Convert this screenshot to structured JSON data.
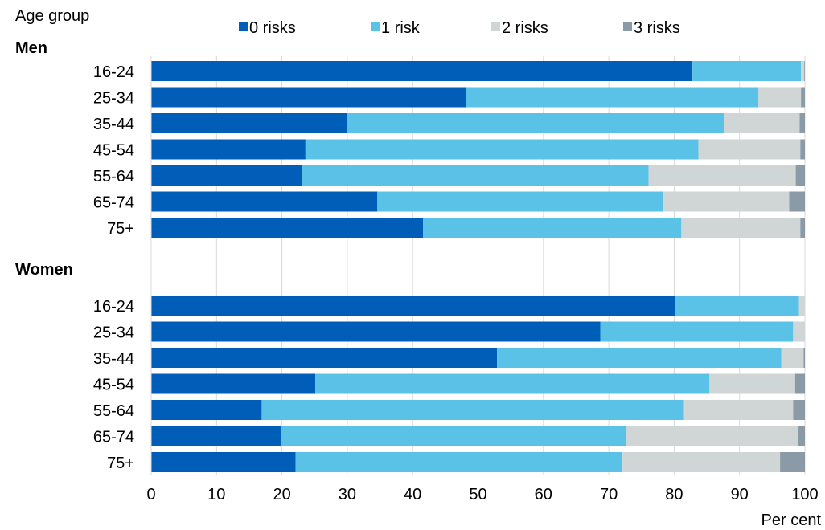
{
  "chart_data": {
    "type": "bar",
    "orientation": "horizontal",
    "stacked": true,
    "legend_title": "Age group",
    "xlabel": "Per cent",
    "xlim": [
      0,
      100
    ],
    "xticks": [
      0,
      10,
      20,
      30,
      40,
      50,
      60,
      70,
      80,
      90,
      100
    ],
    "grid": "vertical",
    "legend_position": "top",
    "series_meta": [
      {
        "name": "0 risks",
        "color": "#005EB8"
      },
      {
        "name": "1 risk",
        "color": "#5BC2E7"
      },
      {
        "name": "2 risks",
        "color": "#D0D5D6"
      },
      {
        "name": "3 risks",
        "color": "#8A9AA6"
      }
    ],
    "groups": [
      {
        "name": "Men",
        "categories": [
          "16-24",
          "25-34",
          "35-44",
          "45-54",
          "55-64",
          "65-74",
          "75+"
        ],
        "values": [
          [
            82.8,
            16.6,
            0.5,
            0.1
          ],
          [
            48.1,
            44.8,
            6.5,
            0.6
          ],
          [
            30.0,
            57.7,
            11.5,
            0.8
          ],
          [
            23.6,
            60.1,
            15.6,
            0.7
          ],
          [
            23.1,
            53.0,
            22.5,
            1.4
          ],
          [
            34.6,
            43.7,
            19.3,
            2.4
          ],
          [
            41.6,
            39.5,
            18.2,
            0.7
          ]
        ]
      },
      {
        "name": "Women",
        "categories": [
          "16-24",
          "25-34",
          "35-44",
          "45-54",
          "55-64",
          "65-74",
          "75+"
        ],
        "values": [
          [
            80.1,
            19.0,
            0.9,
            0.0
          ],
          [
            68.7,
            29.5,
            1.8,
            0.0
          ],
          [
            52.9,
            43.5,
            3.4,
            0.2
          ],
          [
            25.1,
            60.3,
            13.1,
            1.5
          ],
          [
            16.9,
            64.6,
            16.7,
            1.8
          ],
          [
            19.9,
            52.7,
            26.3,
            1.1
          ],
          [
            22.1,
            50.0,
            24.1,
            3.8
          ]
        ]
      }
    ]
  }
}
